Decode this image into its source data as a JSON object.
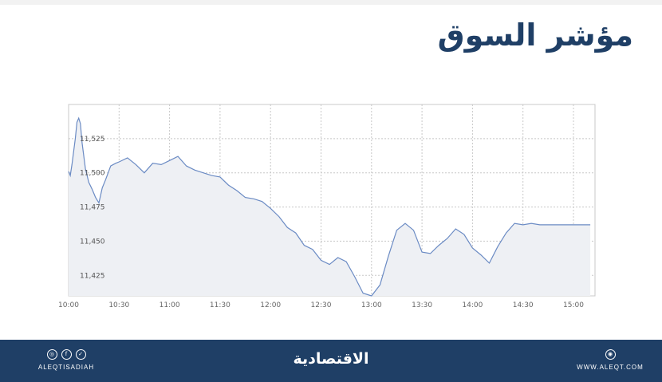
{
  "title": "مؤشر السوق",
  "footer": {
    "handle": "ALEQTISADIAH",
    "brand": "الاقتصادية",
    "website": "WWW.ALEQT.COM",
    "icons": [
      "instagram-icon",
      "facebook-icon",
      "twitter-icon",
      "web-icon"
    ]
  },
  "colors": {
    "title": "#1f3f66",
    "footer_bg": "#1f3f66",
    "line": "#6b8bc4",
    "area": "#eef0f4",
    "grid": "#c8c8c8"
  },
  "chart_data": {
    "type": "area",
    "title": "مؤشر السوق",
    "xlabel": "",
    "ylabel": "",
    "x_ticks": [
      "10:00",
      "10:30",
      "11:00",
      "11:30",
      "12:00",
      "12:30",
      "13:00",
      "13:30",
      "14:00",
      "14:30",
      "15:00"
    ],
    "y_ticks": [
      11425,
      11450,
      11475,
      11500,
      11525
    ],
    "ylim": [
      11410,
      11550
    ],
    "xlim": [
      "10:00",
      "15:10"
    ],
    "grid": true,
    "series": [
      {
        "x": [
          "10:00",
          "10:01",
          "10:02",
          "10:04",
          "10:05",
          "10:06",
          "10:07",
          "10:08",
          "10:10",
          "10:12",
          "10:14",
          "10:16",
          "10:18",
          "10:20",
          "10:22",
          "10:25",
          "10:28",
          "10:30",
          "10:35",
          "10:40",
          "10:45",
          "10:50",
          "10:55",
          "11:00",
          "11:05",
          "11:10",
          "11:15",
          "11:20",
          "11:25",
          "11:30",
          "11:35",
          "11:40",
          "11:45",
          "11:50",
          "11:55",
          "12:00",
          "12:05",
          "12:10",
          "12:15",
          "12:20",
          "12:25",
          "12:30",
          "12:35",
          "12:40",
          "12:45",
          "12:50",
          "12:55",
          "13:00",
          "13:05",
          "13:10",
          "13:15",
          "13:20",
          "13:25",
          "13:30",
          "13:35",
          "13:40",
          "13:45",
          "13:50",
          "13:55",
          "14:00",
          "14:05",
          "14:10",
          "14:15",
          "14:20",
          "14:25",
          "14:30",
          "14:35",
          "14:40",
          "14:45",
          "14:50",
          "14:55",
          "15:00",
          "15:05",
          "15:10"
        ],
        "values": [
          11501,
          11498,
          11506,
          11525,
          11537,
          11540,
          11536,
          11522,
          11503,
          11493,
          11488,
          11482,
          11478,
          11489,
          11495,
          11505,
          11507,
          11508,
          11511,
          11506,
          11500,
          11507,
          11506,
          11509,
          11512,
          11505,
          11502,
          11500,
          11498,
          11497,
          11491,
          11487,
          11482,
          11481,
          11479,
          11474,
          11468,
          11460,
          11456,
          11447,
          11444,
          11436,
          11433,
          11438,
          11435,
          11424,
          11412,
          11410,
          11418,
          11439,
          11458,
          11463,
          11458,
          11442,
          11441,
          11447,
          11452,
          11459,
          11455,
          11445,
          11440,
          11434,
          11446,
          11456,
          11463,
          11462,
          11463,
          11462,
          11462,
          11462,
          11462,
          11462,
          11462,
          11462
        ]
      }
    ]
  }
}
